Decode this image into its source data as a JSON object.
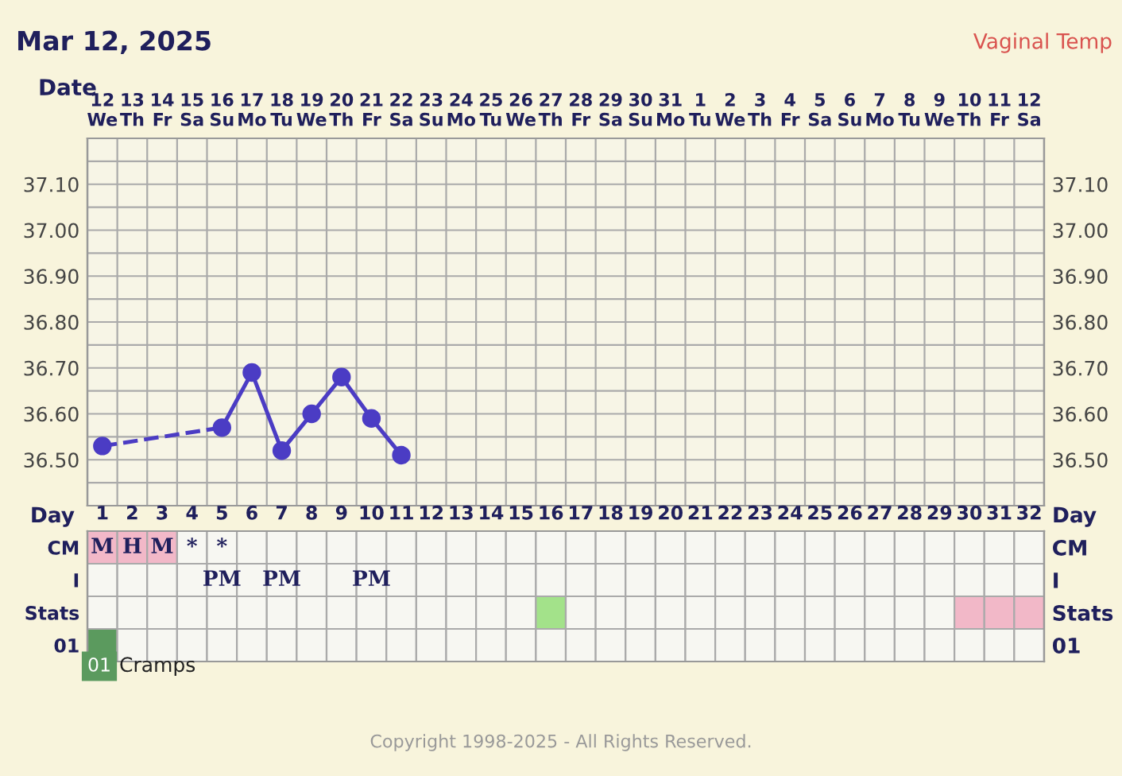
{
  "chart_data": [
    {
      "type": "line",
      "title": "Mar 12, 2025",
      "xlabel": "Date",
      "annotations": [
        "Vaginal Temp"
      ],
      "categories": [
        "12\nWe",
        "13\nTh",
        "14\nFr",
        "15\nSa",
        "16\nSu",
        "17\nMo",
        "18\nTu",
        "19\nWe",
        "20\nTh",
        "21\nFr",
        "22\nSa",
        "23\nSu",
        "24\nMo",
        "25\nTu",
        "26\nWe",
        "27\nTh",
        "28\nFr",
        "29\nSa",
        "30\nSu",
        "31\nMo",
        "1\nTu",
        "2\nWe",
        "3\nTh",
        "4\nFr",
        "5\nSa",
        "6\nSu",
        "7\nMo",
        "8\nTu",
        "9\nWe",
        "10\nTh",
        "11\nFr",
        "12\nSa"
      ],
      "series": [
        {
          "color": "#4b3cc4",
          "values": [
            36.53,
            null,
            null,
            null,
            36.57,
            36.69,
            36.52,
            36.6,
            36.68,
            36.59,
            36.51,
            null,
            null,
            null,
            null,
            null,
            null,
            null,
            null,
            null,
            null,
            null,
            null,
            null,
            null,
            null,
            null,
            null,
            null,
            null,
            null,
            null
          ]
        }
      ],
      "marker": "circle",
      "line_style": "solid",
      "grid": true,
      "ylim": [
        36.4,
        37.2
      ],
      "yticks": [
        {
          "value": 36.45,
          "label": null
        },
        {
          "value": 36.5,
          "label": "36.50"
        },
        {
          "value": 36.55,
          "label": null
        },
        {
          "value": 36.6,
          "label": "36.60"
        },
        {
          "value": 36.65,
          "label": null
        },
        {
          "value": 36.7,
          "label": "36.70"
        },
        {
          "value": 36.75,
          "label": null
        },
        {
          "value": 36.8,
          "label": "36.80"
        },
        {
          "value": 36.85,
          "label": null
        },
        {
          "value": 36.9,
          "label": "36.90"
        },
        {
          "value": 36.95,
          "label": null
        },
        {
          "value": 37.0,
          "label": "37.00"
        },
        {
          "value": 37.05,
          "label": null
        },
        {
          "value": 37.1,
          "label": "37.10"
        },
        {
          "value": 37.15,
          "label": null
        }
      ],
      "y2lim": [
        36.4,
        37.2
      ],
      "y2ticks": [
        {
          "value": 36.5,
          "label": "36.50"
        },
        {
          "value": 36.6,
          "label": "36.60"
        },
        {
          "value": 36.7,
          "label": "36.70"
        },
        {
          "value": 36.8,
          "label": "36.80"
        },
        {
          "value": 36.9,
          "label": "36.90"
        },
        {
          "value": 37.0,
          "label": "37.00"
        },
        {
          "value": 37.1,
          "label": "37.10"
        }
      ]
    },
    {
      "type": "heatmap",
      "xlabel": "Day",
      "categories": [
        "1",
        "2",
        "3",
        "4",
        "5",
        "6",
        "7",
        "8",
        "9",
        "10",
        "11",
        "12",
        "13",
        "14",
        "15",
        "16",
        "17",
        "18",
        "19",
        "20",
        "21",
        "22",
        "23",
        "24",
        "25",
        "26",
        "27",
        "28",
        "29",
        "30",
        "31",
        "32"
      ],
      "y_categories": [
        "CM",
        "I",
        "Stats",
        "01"
      ],
      "y2_categories": [
        "CM",
        "I",
        "Stats",
        "01"
      ],
      "cells": [
        [
          null,
          null,
          null,
          null,
          null,
          null,
          null,
          null,
          null,
          null,
          null,
          null,
          null,
          null,
          null,
          null,
          null,
          null,
          null,
          null,
          null,
          null,
          null,
          null,
          null,
          null,
          null,
          null,
          null,
          null,
          null,
          null
        ],
        [
          null,
          null,
          null,
          null,
          null,
          null,
          null,
          null,
          null,
          null,
          null,
          null,
          null,
          null,
          null,
          null,
          null,
          null,
          null,
          null,
          null,
          null,
          null,
          null,
          null,
          null,
          null,
          null,
          null,
          null,
          null,
          null
        ],
        [
          null,
          null,
          null,
          null,
          null,
          null,
          null,
          null,
          null,
          null,
          null,
          null,
          null,
          null,
          null,
          null,
          null,
          null,
          null,
          null,
          null,
          null,
          null,
          null,
          null,
          null,
          null,
          null,
          null,
          null,
          null,
          null
        ],
        [
          null,
          null,
          null,
          null,
          null,
          null,
          null,
          null,
          null,
          null,
          null,
          null,
          null,
          null,
          null,
          null,
          null,
          null,
          null,
          null,
          null,
          null,
          null,
          null,
          null,
          null,
          null,
          null,
          null,
          null,
          null,
          null
        ]
      ],
      "cell_labels": [
        [
          "M",
          "H",
          "M",
          "*",
          "*",
          null,
          null,
          null,
          null,
          null,
          null,
          null,
          null,
          null,
          null,
          null,
          null,
          null,
          null,
          null,
          null,
          null,
          null,
          null,
          null,
          null,
          null,
          null,
          null,
          null,
          null,
          null
        ],
        [
          null,
          null,
          null,
          null,
          "PM",
          null,
          "PM",
          null,
          null,
          "PM",
          null,
          null,
          null,
          null,
          null,
          null,
          null,
          null,
          null,
          null,
          null,
          null,
          null,
          null,
          null,
          null,
          null,
          null,
          null,
          null,
          null,
          null
        ],
        [
          null,
          null,
          null,
          null,
          null,
          null,
          null,
          null,
          null,
          null,
          null,
          null,
          null,
          null,
          null,
          null,
          null,
          null,
          null,
          null,
          null,
          null,
          null,
          null,
          null,
          null,
          null,
          null,
          null,
          null,
          null,
          null
        ],
        [
          null,
          null,
          null,
          null,
          null,
          null,
          null,
          null,
          null,
          null,
          null,
          null,
          null,
          null,
          null,
          null,
          null,
          null,
          null,
          null,
          null,
          null,
          null,
          null,
          null,
          null,
          null,
          null,
          null,
          null,
          null,
          null
        ]
      ],
      "colors": [
        [
          "#f2b8c8",
          "#f2b8c8",
          "#f2b8c8",
          null,
          null,
          null,
          null,
          null,
          null,
          null,
          null,
          null,
          null,
          null,
          null,
          null,
          null,
          null,
          null,
          null,
          null,
          null,
          null,
          null,
          null,
          null,
          null,
          null,
          null,
          null,
          null,
          null
        ],
        [
          null,
          null,
          null,
          null,
          null,
          null,
          null,
          null,
          null,
          null,
          null,
          null,
          null,
          null,
          null,
          null,
          null,
          null,
          null,
          null,
          null,
          null,
          null,
          null,
          null,
          null,
          null,
          null,
          null,
          null,
          null,
          null
        ],
        [
          null,
          null,
          null,
          null,
          null,
          null,
          null,
          null,
          null,
          null,
          null,
          null,
          null,
          null,
          null,
          "#a3e28a",
          null,
          null,
          null,
          null,
          null,
          null,
          null,
          null,
          null,
          null,
          null,
          null,
          null,
          "#f2b8c8",
          "#f2b8c8",
          "#f2b8c8"
        ],
        [
          "#5b9a5e",
          null,
          null,
          null,
          null,
          null,
          null,
          null,
          null,
          null,
          null,
          null,
          null,
          null,
          null,
          null,
          null,
          null,
          null,
          null,
          null,
          null,
          null,
          null,
          null,
          null,
          null,
          null,
          null,
          null,
          null,
          null
        ]
      ],
      "annotations": [
        "01",
        "Cramps",
        "Copyright 1998-2025 - All Rights Reserved."
      ]
    }
  ]
}
